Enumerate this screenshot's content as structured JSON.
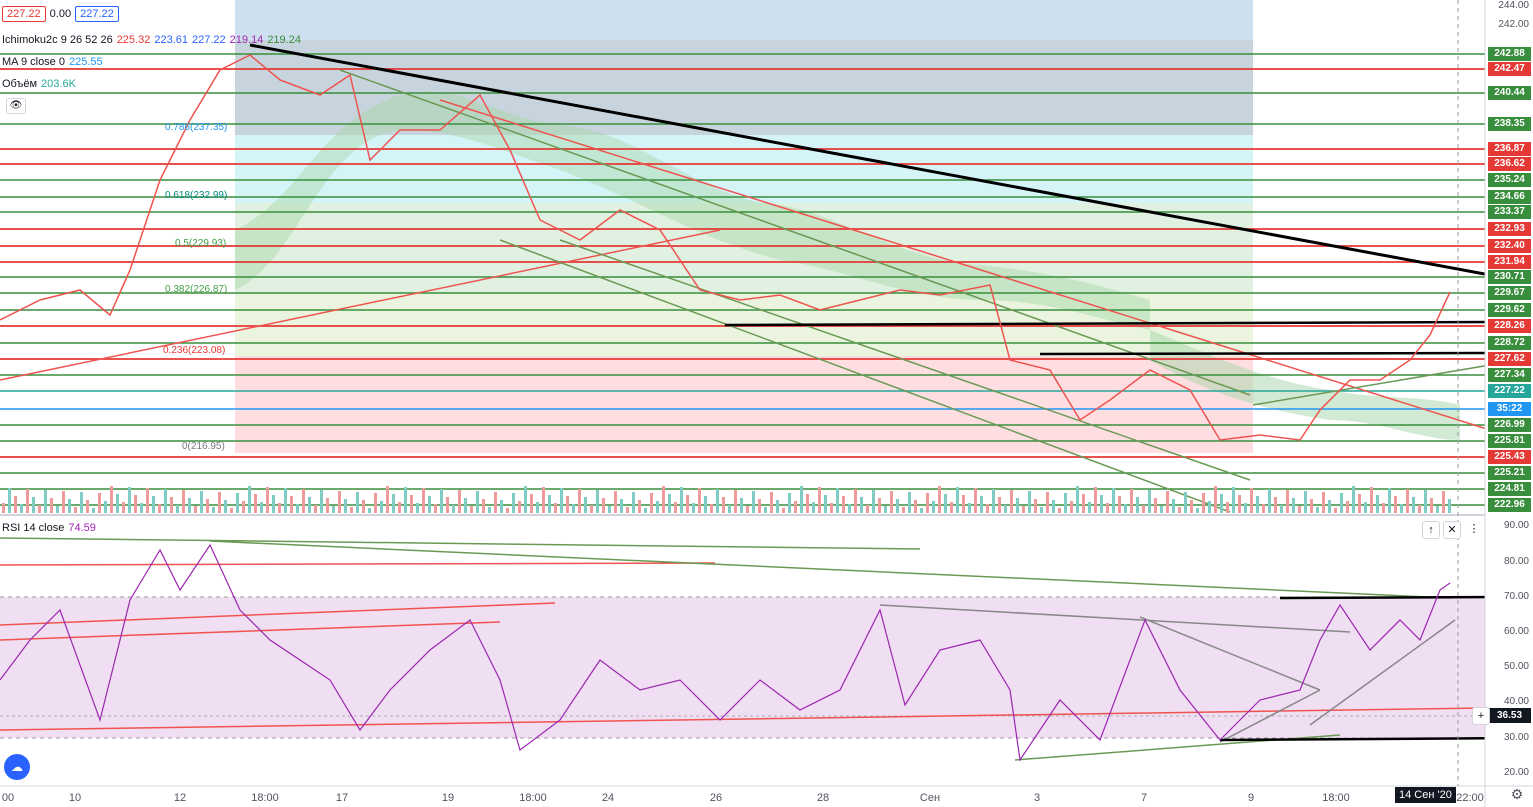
{
  "top_bar": {
    "price_left": "227.22",
    "change": "0.00",
    "price_right": "227.22"
  },
  "ichimoku": {
    "name": "Ichimoku2c 9 26 52 26",
    "v1": "225.32",
    "v2": "223.61",
    "v3": "227.22",
    "v4": "219.14",
    "v5": "219.24",
    "colors": [
      "#e53935",
      "#2962ff",
      "#2962ff",
      "#9c27b0",
      "#388e3c"
    ]
  },
  "ma": {
    "name": "MA 9 close 0",
    "value": "225.55",
    "color": "#2196f3"
  },
  "volume": {
    "name": "Объём",
    "value": "203.6K",
    "color": "#26a69a"
  },
  "rsi": {
    "name": "RSI 14 close",
    "value": "74.59",
    "color": "#9c27b0"
  },
  "fib_levels": [
    {
      "label": "0.786(237.35)",
      "color": "#2196f3"
    },
    {
      "label": "0.618(232.99)",
      "color": "#00897b"
    },
    {
      "label": "0.5(229.93)",
      "color": "#43a047"
    },
    {
      "label": "0.382(226.87)",
      "color": "#43a047"
    },
    {
      "label": "0.236(223.08)",
      "color": "#e53935"
    },
    {
      "label": "0(216.95)",
      "color": "#787b86"
    }
  ],
  "price_labels": [
    {
      "text": "242.88",
      "color": "#388e3c"
    },
    {
      "text": "242.47",
      "color": "#e53935"
    },
    {
      "text": "240.44",
      "color": "#388e3c"
    },
    {
      "text": "238.35",
      "color": "#388e3c"
    },
    {
      "text": "236.87",
      "color": "#e53935"
    },
    {
      "text": "236.62",
      "color": "#e53935"
    },
    {
      "text": "235.24",
      "color": "#388e3c"
    },
    {
      "text": "234.66",
      "color": "#388e3c"
    },
    {
      "text": "233.37",
      "color": "#388e3c"
    },
    {
      "text": "232.93",
      "color": "#e53935"
    },
    {
      "text": "232.40",
      "color": "#e53935"
    },
    {
      "text": "231.94",
      "color": "#e53935"
    },
    {
      "text": "230.71",
      "color": "#388e3c"
    },
    {
      "text": "229.67",
      "color": "#388e3c"
    },
    {
      "text": "229.62",
      "color": "#388e3c"
    },
    {
      "text": "228.26",
      "color": "#e53935"
    },
    {
      "text": "228.72",
      "color": "#388e3c"
    },
    {
      "text": "227.62",
      "color": "#e53935"
    },
    {
      "text": "227.34",
      "color": "#388e3c"
    },
    {
      "text": "227.22",
      "color": "#26a69a"
    },
    {
      "text": "35:22",
      "color": "#2196f3"
    },
    {
      "text": "226.99",
      "color": "#388e3c"
    },
    {
      "text": "225.81",
      "color": "#388e3c"
    },
    {
      "text": "225.43",
      "color": "#e53935"
    },
    {
      "text": "225.21",
      "color": "#388e3c"
    },
    {
      "text": "224.81",
      "color": "#388e3c"
    },
    {
      "text": "222.96",
      "color": "#388e3c"
    }
  ],
  "price_axis": [
    "244.00",
    "242.00"
  ],
  "rsi_axis": [
    "90.00",
    "80.00",
    "70.00",
    "60.00",
    "50.00",
    "40.00",
    "30.00",
    "20.00"
  ],
  "rsi_crosshair": "36.53",
  "x_axis": [
    "00",
    "10",
    "12",
    "18:00",
    "17",
    "19",
    "18:00",
    "24",
    "26",
    "28",
    "Сен",
    "3",
    "7",
    "9",
    "18:00",
    "14 Сен '20",
    "22:00"
  ],
  "buttons": {
    "up": "↑",
    "close": "✕",
    "more": "⋮",
    "add": "+"
  }
}
